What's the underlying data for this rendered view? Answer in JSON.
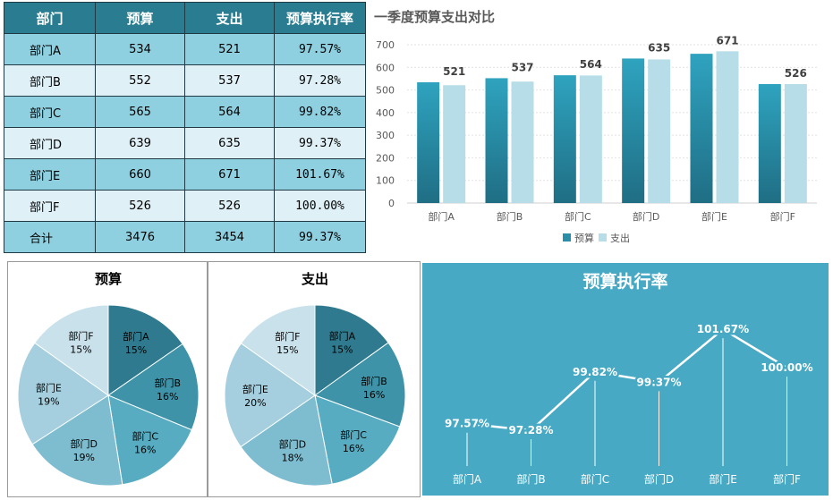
{
  "table": {
    "headers": [
      "部门",
      "预算",
      "支出",
      "预算执行率"
    ],
    "rows": [
      [
        "部门A",
        "534",
        "521",
        "97.57%"
      ],
      [
        "部门B",
        "552",
        "537",
        "97.28%"
      ],
      [
        "部门C",
        "565",
        "564",
        "99.82%"
      ],
      [
        "部门D",
        "639",
        "635",
        "99.37%"
      ],
      [
        "部门E",
        "660",
        "671",
        "101.67%"
      ],
      [
        "部门F",
        "526",
        "526",
        "100.00%"
      ],
      [
        "合计",
        "3476",
        "3454",
        "99.37%"
      ]
    ]
  },
  "chart_data": [
    {
      "type": "bar",
      "title": "一季度预算支出对比",
      "categories": [
        "部门A",
        "部门B",
        "部门C",
        "部门D",
        "部门E",
        "部门F"
      ],
      "series": [
        {
          "name": "预算",
          "values": [
            534,
            552,
            565,
            639,
            660,
            526
          ],
          "color": "#2a8ea8"
        },
        {
          "name": "支出",
          "values": [
            521,
            537,
            564,
            635,
            671,
            526
          ],
          "color": "#b6dde8"
        }
      ],
      "data_labels": [
        "521",
        "537",
        "564",
        "635",
        "671",
        "526"
      ],
      "ylim": [
        0,
        700
      ],
      "yticks": [
        0,
        100,
        200,
        300,
        400,
        500,
        600,
        700
      ],
      "grid": true,
      "legend": "bottom"
    },
    {
      "type": "pie",
      "title": "预算",
      "labels": [
        "部门A",
        "部门B",
        "部门C",
        "部门D",
        "部门E",
        "部门F"
      ],
      "values": [
        534,
        552,
        565,
        639,
        660,
        526
      ],
      "percent_labels": [
        "15%",
        "16%",
        "16%",
        "19%",
        "19%",
        "15%"
      ],
      "colors": [
        "#2f7a8e",
        "#3f93a8",
        "#58acc2",
        "#7ebcd0",
        "#a5cfde",
        "#c8e1ea"
      ]
    },
    {
      "type": "pie",
      "title": "支出",
      "labels": [
        "部门A",
        "部门B",
        "部门C",
        "部门D",
        "部门E",
        "部门F"
      ],
      "values": [
        521,
        537,
        564,
        635,
        671,
        526
      ],
      "percent_labels": [
        "15%",
        "16%",
        "16%",
        "18%",
        "20%",
        "15%"
      ],
      "colors": [
        "#2f7a8e",
        "#3f93a8",
        "#58acc2",
        "#7ebcd0",
        "#a5cfde",
        "#c8e1ea"
      ]
    },
    {
      "type": "line",
      "title": "预算执行率",
      "categories": [
        "部门A",
        "部门B",
        "部门C",
        "部门D",
        "部门E",
        "部门F"
      ],
      "values": [
        97.57,
        97.28,
        99.82,
        99.37,
        101.67,
        100.0
      ],
      "value_labels": [
        "97.57%",
        "97.28%",
        "99.82%",
        "99.37%",
        "101.67%",
        "100.00%"
      ],
      "ylim": [
        96.2,
        102.8
      ],
      "background": "#47a9c4"
    }
  ]
}
